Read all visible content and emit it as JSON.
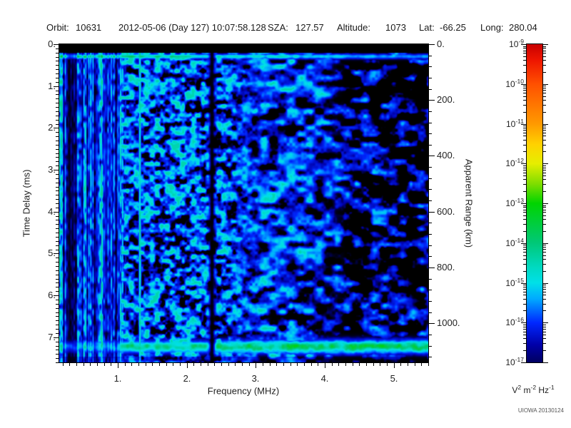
{
  "header": {
    "orbit_label": "Orbit:",
    "orbit_value": "10631",
    "datetime": "2012-05-06 (Day 127) 10:07:58.128",
    "sza_label": "SZA:",
    "sza_value": "127.57",
    "altitude_label": "Altitude:",
    "altitude_value": "1073",
    "lat_label": "Lat:",
    "lat_value": "-66.25",
    "long_label": "Long:",
    "long_value": "280.04"
  },
  "chart_data": {
    "type": "heatmap",
    "title": "",
    "xlabel": "Frequency (MHz)",
    "ylabel_left": "Time Delay (ms)",
    "ylabel_right": "Apparent Range (km)",
    "x_range_mhz": [
      0.15,
      5.5
    ],
    "x_major_ticks": [
      1,
      2,
      3,
      4,
      5
    ],
    "x_tick_labels": [
      "1.",
      "2.",
      "3.",
      "4.",
      "5."
    ],
    "x_minor_step_mhz": 0.1,
    "y_range_ms": [
      0,
      7.6
    ],
    "y_major_ticks": [
      0,
      1,
      2,
      3,
      4,
      5,
      6,
      7
    ],
    "y_tick_labels": [
      "0.",
      "1.",
      "2.",
      "3.",
      "4.",
      "5.",
      "6.",
      "7."
    ],
    "y_minor_step_ms": 0.1,
    "right_axis_ticks_km": [
      0,
      200,
      400,
      600,
      800,
      1000
    ],
    "right_axis_tick_labels": [
      "0.",
      "200.",
      "400.",
      "600.",
      "800.",
      "1000."
    ],
    "right_axis_minor_step_km": 40,
    "km_per_ms": 150,
    "colorbar": {
      "scale": "log",
      "max": 1e-09,
      "min": 1e-17,
      "tick_exponents": [
        -9,
        -10,
        -11,
        -12,
        -13,
        -14,
        -15,
        -16,
        -17
      ],
      "unit_parts": [
        {
          "base": "V",
          "exp": "2"
        },
        {
          "base": "m",
          "exp": "-2"
        },
        {
          "base": "Hz",
          "exp": "-1"
        }
      ],
      "gradient_stops": [
        [
          0.0,
          "#c80000"
        ],
        [
          0.05,
          "#ee1500"
        ],
        [
          0.125,
          "#ff5000"
        ],
        [
          0.25,
          "#ff9900"
        ],
        [
          0.315,
          "#ffd200"
        ],
        [
          0.375,
          "#e6ee00"
        ],
        [
          0.44,
          "#7ddd00"
        ],
        [
          0.5,
          "#00d400"
        ],
        [
          0.625,
          "#00c878"
        ],
        [
          0.7,
          "#00d9c0"
        ],
        [
          0.75,
          "#00e0e8"
        ],
        [
          0.8,
          "#00aaff"
        ],
        [
          0.875,
          "#0028ff"
        ],
        [
          0.945,
          "#0000a8"
        ],
        [
          1.0,
          "#000060"
        ]
      ]
    },
    "features": {
      "seed": 20130124,
      "top_black_band_ms": [
        0,
        0.2
      ],
      "surface_echo_band_ms": 0.285,
      "bottom_bright_band_ms": 7.22,
      "blank_column_mhz": 2.36,
      "bright_line_mhz": 1.315,
      "striped_region_max_mhz": 1.05,
      "sparse_region_min_mhz": 4.15,
      "dark_stripe_cluster_mhz": [
        0.27,
        0.4
      ]
    },
    "credit": "UIOWA 20130124"
  }
}
